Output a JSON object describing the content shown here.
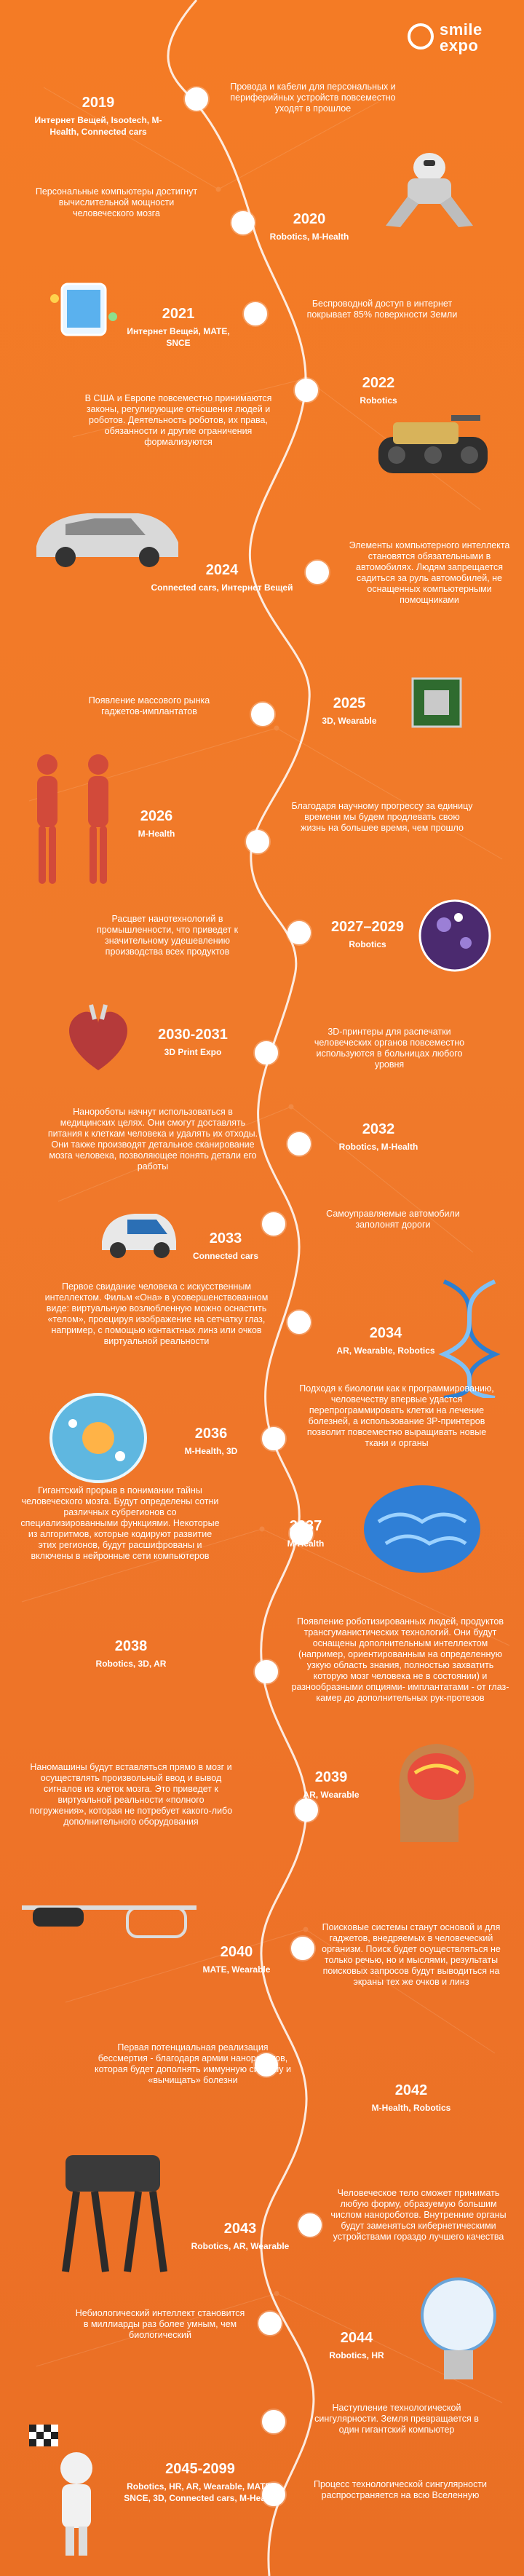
{
  "brand": {
    "line1": "smile",
    "line2": "expo"
  },
  "entries": [
    {
      "year": "2019",
      "tags": "Интернет Вещей, Isootech, M-Health, Connected cars",
      "desc": "Провода и кабели для персональных и периферийных устройств повсеместно уходят в прошлое",
      "icon": "robot-legs-icon"
    },
    {
      "year": "2020",
      "tags": "Robotics, M-Health",
      "desc": "Персональные компьютеры достигнут вычислительной мощности человеческого мозга",
      "icon": "crouching-robot-icon"
    },
    {
      "year": "2021",
      "tags": "Интернет Вещей, MATE, SNCE",
      "desc": "Беспроводной доступ в интернет покрывает 85% поверхности Земли",
      "icon": "smartphone-icon"
    },
    {
      "year": "2022",
      "tags": "Robotics",
      "desc": "В США и Европе повсеместно принимаются законы, регулирующие отношения людей и роботов. Деятельность роботов, их права, обязанности и другие ограничения формализуются",
      "icon": "tank-robot-icon"
    },
    {
      "year": "2024",
      "tags": "Connected cars, Интернет Вещей",
      "desc": "Элементы компьютерного интеллекта становятся обязательными в автомобилях. Людям запрещается садиться за руль автомобилей, не оснащенных компьютерными помощниками",
      "icon": "car-icon"
    },
    {
      "year": "2025",
      "tags": "3D, Wearable",
      "desc": "Появление массового рынка гаджетов-имплантатов",
      "icon": "chip-icon"
    },
    {
      "year": "2026",
      "tags": "M-Health",
      "desc": "Благодаря научному прогрессу за единицу времени мы будем продлевать свою жизнь на большее время, чем прошло",
      "icon": "anatomy-icon"
    },
    {
      "year": "2027–2029",
      "tags": "Robotics",
      "desc": "Расцвет нанотехнологий в промышленности, что приведет к значительному удешевлению производства всех продуктов",
      "icon": "nanosphere-icon"
    },
    {
      "year": "2030-2031",
      "tags": "3D Print Expo",
      "desc": "3D-принтеры для распечатки человеческих органов повсеместно используются в больницах любого уровня",
      "icon": "heart-icon"
    },
    {
      "year": "2032",
      "tags": "Robotics, M-Health",
      "desc": "Нанороботы начнут использоваться в медицинских целях. Они смогут доставлять питания к клеткам человека и удалять их отходы. Они также производят детальное сканирование мозга человека, позволяющее понять детали его работы",
      "icon": ""
    },
    {
      "year": "2033",
      "tags": "Connected cars",
      "desc": "Самоуправляемые автомобили заполонят дороги",
      "icon": "smart-car-icon"
    },
    {
      "year": "2034",
      "tags": "AR, Wearable, Robotics",
      "desc": "Первое свидание человека с искусственным интеллектом. Фильм «Она» в усовершенствованном виде: виртуальную возлюбленную можно оснастить «телом», проецируя изображение на сетчатку глаз, например, с помощью контактных линз или очков виртуальной реальности",
      "icon": "dna-icon"
    },
    {
      "year": "2036",
      "tags": "M-Health, 3D",
      "desc": "Подходя к биологии как к программированию, человечеству впервые удастся перепрограммировать клетки на лечение болезней, а использование 3Р-принтеров позволит повсеместно выращивать новые ткани и органы",
      "icon": "cell-icon"
    },
    {
      "year": "2037",
      "tags": "M-Health",
      "desc": "Гигантский прорыв в понимании тайны человеческого мозга. Будут определены сотни различных субрегионов со специализированными функциями. Некоторые из алгоритмов, которые кодируют развитие этих регионов, будут расшифрованы и включены в нейронные сети компьютеров",
      "icon": "brain-icon"
    },
    {
      "year": "2038",
      "tags": "Robotics, 3D, AR",
      "desc": "Появление роботизированных людей, продуктов трансгуманистических технологий. Они будут оснащены дополнительным интеллектом (например, ориентированным на определенную узкую область знания, полностью захватить которую мозг человека не в состоянии) и разнообразными опциями- имплантатами - от глаз-камер до дополнительных рук-протезов",
      "icon": ""
    },
    {
      "year": "2039",
      "tags": "AR, Wearable",
      "desc": "Наномашины будут вставляться прямо в мозг и осуществлять произвольный ввод и вывод сигналов из клеток мозга. Это приведет к виртуальной реальности «полного погружения», которая не потребует какого-либо дополнительного оборудования",
      "icon": "head-scan-icon"
    },
    {
      "year": "2040",
      "tags": "MATE, Wearable",
      "desc": "Поисковые системы станут основой и для гаджетов, внедряемых в человеческий организм. Поиск будет осуществляться не только речью, но и мыслями, результаты поисковых запросов будут выводиться на экраны тех же очков и линз",
      "icon": "smart-glasses-icon"
    },
    {
      "year": "2042",
      "tags": "M-Health, Robotics",
      "desc": "Первая потенциальная реализация бессмертия - благодаря армии нанороботов, которая будет дополнять иммунную систему и «вычищать» болезни",
      "icon": ""
    },
    {
      "year": "2043",
      "tags": "Robotics, AR, Wearable",
      "desc": "Человеческое тело сможет принимать любую форму, образуемую большим числом нанороботов. Внутренние органы будут заменяться кибернетическими устройствами гораздо лучшего качества",
      "icon": "robot-dog-icon"
    },
    {
      "year": "2044",
      "tags": "Robotics, HR",
      "desc": "Небиологический интеллект становится в миллиарды раз более умным, чем биологический",
      "icon": "lightbulb-icon"
    },
    {
      "year": "2045-2099",
      "tags": "Robotics, HR, AR, Wearable, MATE, SNCE, 3D, Connected cars, M-Health",
      "desc": "Наступление технологической сингулярности. Земля превращается в один гигантский компьютер",
      "desc2": "Процесс технологической сингулярности распространяется на всю Вселенную",
      "icon": "finish-robot-icon"
    }
  ]
}
